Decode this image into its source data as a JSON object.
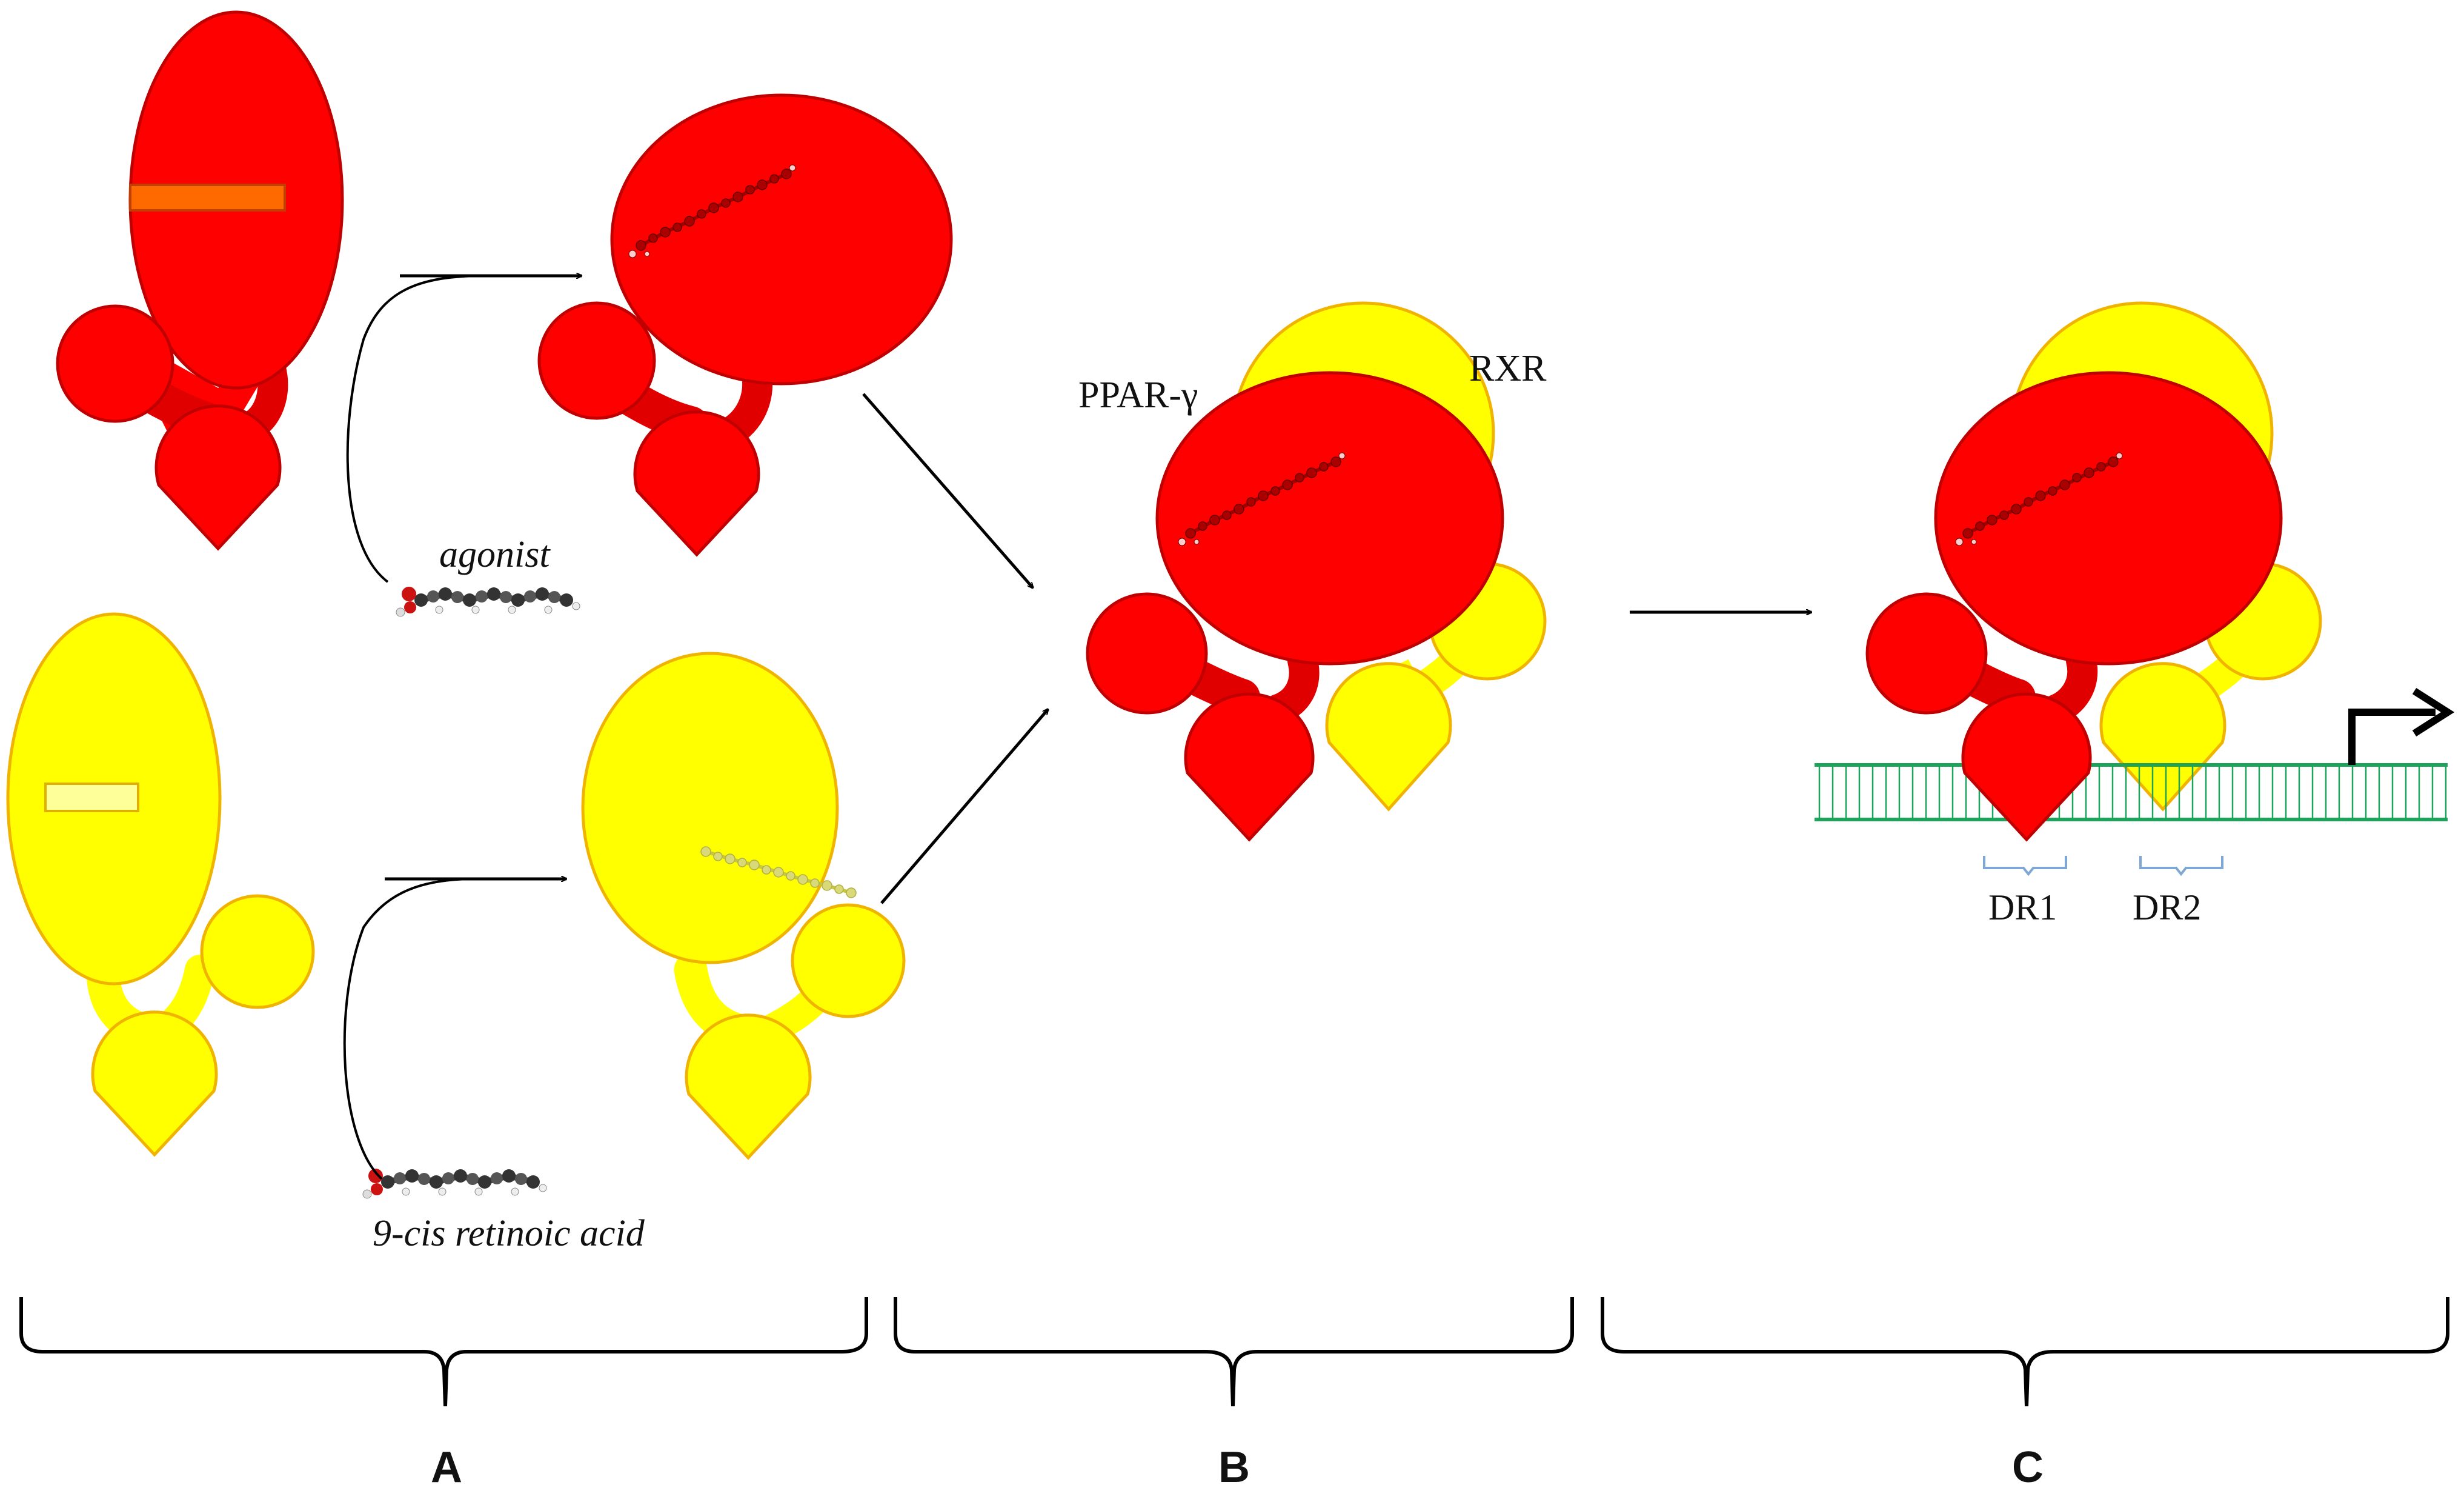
{
  "figure": {
    "labels": {
      "agonist": "agonist",
      "retinoic_acid": "9-cis retinoic acid",
      "ppar": "PPAR-γ",
      "rxr": "RXR",
      "dr1": "DR1",
      "dr2": "DR2"
    },
    "panels": [
      {
        "id": "A",
        "label": "A"
      },
      {
        "id": "B",
        "label": "B"
      },
      {
        "id": "C",
        "label": "C"
      }
    ]
  },
  "colors": {
    "ppar_fill": "#ff0000",
    "ppar_stroke": "#c00000",
    "rxr_fill": "#ffff00",
    "rxr_stroke": "#f0b400",
    "pocket_ppar": "#ff6a00",
    "pocket_rxr": "#ffff99",
    "dna": "#1ea35a",
    "dna_bracket": "#7fa7d6",
    "ligand": "#333333",
    "ligand_oxygen": "#cc1111",
    "arrow": "#000000"
  }
}
